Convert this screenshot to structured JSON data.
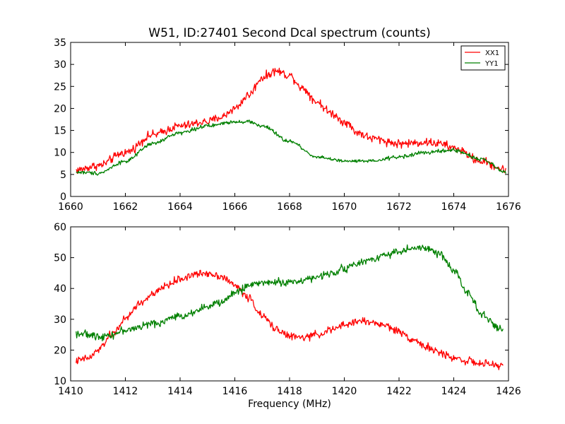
{
  "chart_data": [
    {
      "type": "line",
      "title": "W51, ID:27401 Second Dcal spectrum (counts)",
      "xlabel": "",
      "ylabel": "",
      "xlim": [
        1660,
        1676
      ],
      "ylim": [
        0,
        35
      ],
      "xticks": [
        "1660",
        "1662",
        "1664",
        "1666",
        "1668",
        "1670",
        "1672",
        "1674",
        "1676"
      ],
      "yticks": [
        "0",
        "5",
        "10",
        "15",
        "20",
        "25",
        "30",
        "35"
      ],
      "legend": {
        "placement": "top-right",
        "entries": [
          "XX1",
          "YY1"
        ]
      },
      "grid": false,
      "x_start": 1660.2,
      "x_end": 1675.9,
      "series": [
        {
          "name": "XX1",
          "color": "#ff0000",
          "noise": 0.8,
          "control_points": [
            [
              1660.2,
              6.0
            ],
            [
              1661.0,
              7.0
            ],
            [
              1662.0,
              10.0
            ],
            [
              1663.0,
              14.0
            ],
            [
              1664.0,
              16.0
            ],
            [
              1665.0,
              17.0
            ],
            [
              1665.5,
              18.0
            ],
            [
              1666.0,
              20.0
            ],
            [
              1666.5,
              23.0
            ],
            [
              1667.0,
              27.0
            ],
            [
              1667.5,
              28.5
            ],
            [
              1668.0,
              27.5
            ],
            [
              1668.5,
              24.5
            ],
            [
              1669.0,
              21.5
            ],
            [
              1669.5,
              19.0
            ],
            [
              1670.0,
              17.0
            ],
            [
              1670.5,
              14.5
            ],
            [
              1671.0,
              13.2
            ],
            [
              1672.0,
              12.0
            ],
            [
              1673.0,
              12.3
            ],
            [
              1673.5,
              12.0
            ],
            [
              1674.0,
              11.0
            ],
            [
              1675.0,
              8.0
            ],
            [
              1675.9,
              6.0
            ]
          ]
        },
        {
          "name": "YY1",
          "color": "#008000",
          "noise": 0.35,
          "control_points": [
            [
              1660.2,
              5.5
            ],
            [
              1661.0,
              5.3
            ],
            [
              1662.0,
              8.0
            ],
            [
              1663.0,
              12.0
            ],
            [
              1664.0,
              14.5
            ],
            [
              1665.0,
              16.0
            ],
            [
              1666.0,
              17.0
            ],
            [
              1666.5,
              17.0
            ],
            [
              1667.0,
              16.0
            ],
            [
              1668.0,
              12.5
            ],
            [
              1669.0,
              9.0
            ],
            [
              1670.0,
              8.0
            ],
            [
              1671.0,
              8.0
            ],
            [
              1672.0,
              9.0
            ],
            [
              1673.0,
              10.0
            ],
            [
              1674.0,
              10.5
            ],
            [
              1675.0,
              8.5
            ],
            [
              1675.9,
              5.5
            ]
          ]
        }
      ]
    },
    {
      "type": "line",
      "title": "",
      "xlabel": "Frequency (MHz)",
      "ylabel": "",
      "xlim": [
        1410,
        1426
      ],
      "ylim": [
        10,
        60
      ],
      "xticks": [
        "1410",
        "1412",
        "1414",
        "1416",
        "1418",
        "1420",
        "1422",
        "1424",
        "1426"
      ],
      "yticks": [
        "10",
        "20",
        "30",
        "40",
        "50",
        "60"
      ],
      "grid": false,
      "x_start": 1410.2,
      "x_end": 1425.8,
      "series": [
        {
          "name": "",
          "color": "#ff0000",
          "noise": 1.0,
          "control_points": [
            [
              1410.2,
              16.5
            ],
            [
              1410.7,
              17.5
            ],
            [
              1411.0,
              20.0
            ],
            [
              1411.5,
              25.0
            ],
            [
              1412.0,
              30.0
            ],
            [
              1412.5,
              35.0
            ],
            [
              1413.0,
              38.0
            ],
            [
              1413.5,
              41.0
            ],
            [
              1414.0,
              43.0
            ],
            [
              1414.5,
              44.5
            ],
            [
              1415.0,
              45.0
            ],
            [
              1415.5,
              44.0
            ],
            [
              1416.0,
              41.0
            ],
            [
              1416.5,
              37.0
            ],
            [
              1417.0,
              31.0
            ],
            [
              1417.5,
              27.0
            ],
            [
              1418.0,
              24.5
            ],
            [
              1418.5,
              24.0
            ],
            [
              1419.0,
              25.0
            ],
            [
              1419.5,
              26.5
            ],
            [
              1420.0,
              28.0
            ],
            [
              1420.5,
              29.5
            ],
            [
              1421.0,
              29.0
            ],
            [
              1421.5,
              28.0
            ],
            [
              1422.0,
              26.0
            ],
            [
              1422.5,
              23.5
            ],
            [
              1423.0,
              21.0
            ],
            [
              1423.5,
              19.0
            ],
            [
              1424.0,
              17.5
            ],
            [
              1424.5,
              16.5
            ],
            [
              1425.0,
              15.5
            ],
            [
              1425.8,
              15.0
            ]
          ]
        },
        {
          "name": "",
          "color": "#008000",
          "noise": 1.0,
          "control_points": [
            [
              1410.2,
              25.5
            ],
            [
              1411.0,
              24.5
            ],
            [
              1411.5,
              25.0
            ],
            [
              1412.0,
              26.5
            ],
            [
              1413.0,
              28.5
            ],
            [
              1414.0,
              31.0
            ],
            [
              1415.0,
              34.0
            ],
            [
              1415.5,
              35.5
            ],
            [
              1416.0,
              38.5
            ],
            [
              1416.5,
              41.0
            ],
            [
              1417.0,
              42.0
            ],
            [
              1418.0,
              42.0
            ],
            [
              1419.0,
              43.5
            ],
            [
              1419.5,
              45.0
            ],
            [
              1420.0,
              46.5
            ],
            [
              1420.5,
              48.0
            ],
            [
              1421.0,
              49.5
            ],
            [
              1421.5,
              51.0
            ],
            [
              1422.0,
              52.0
            ],
            [
              1422.5,
              53.0
            ],
            [
              1423.0,
              53.0
            ],
            [
              1423.5,
              51.0
            ],
            [
              1424.0,
              46.0
            ],
            [
              1424.5,
              39.0
            ],
            [
              1425.0,
              32.0
            ],
            [
              1425.5,
              28.0
            ],
            [
              1425.8,
              26.0
            ]
          ]
        }
      ]
    }
  ]
}
